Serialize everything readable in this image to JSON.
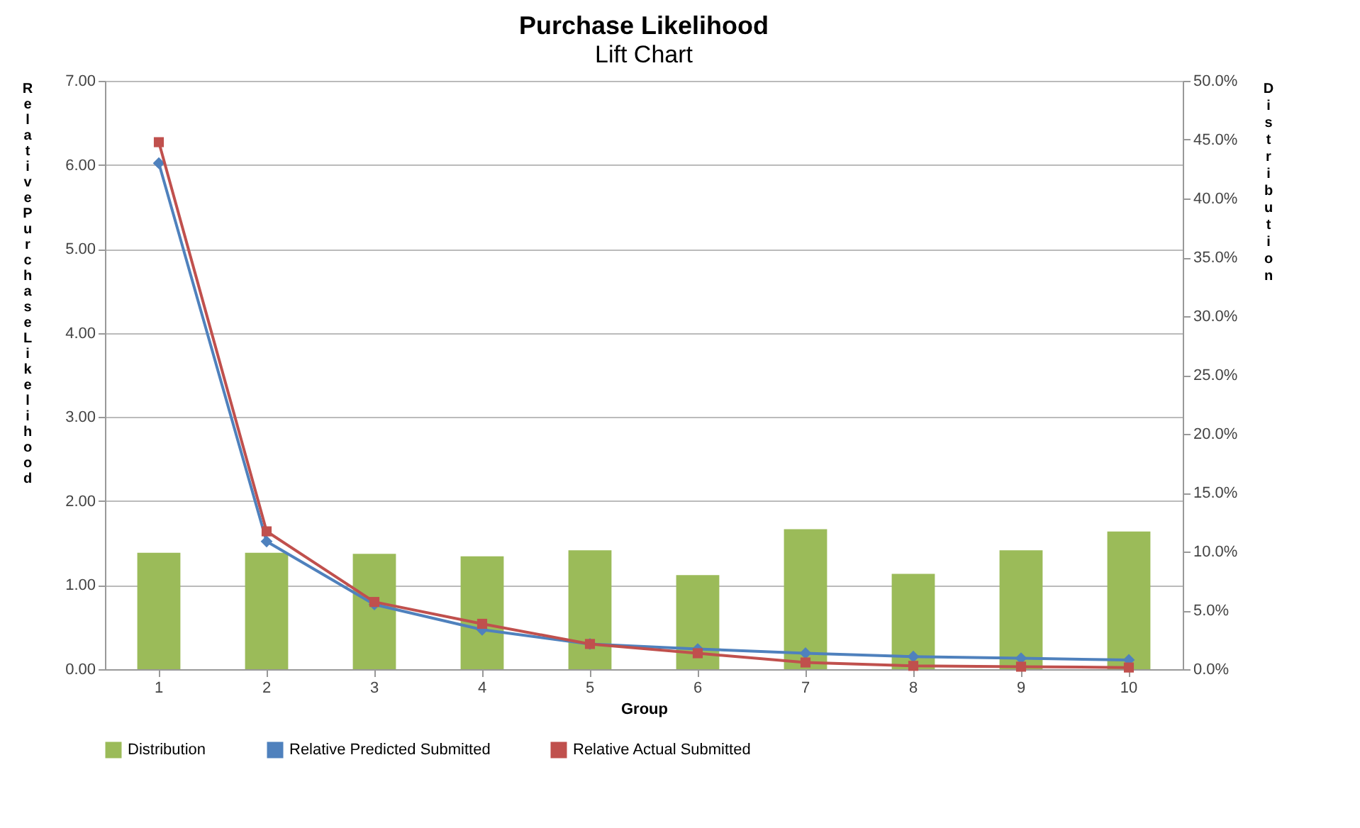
{
  "chart_data": {
    "type": "bar",
    "title": "Purchase Likelihood",
    "subtitle": "Lift Chart",
    "xlabel": "Group",
    "ylabel": "Relative Purchase Likelihood",
    "y2label": "Distribution",
    "categories": [
      "1",
      "2",
      "3",
      "4",
      "5",
      "6",
      "7",
      "8",
      "9",
      "10"
    ],
    "series": [
      {
        "name": "Distribution",
        "axis": "y2",
        "color": "#9bbb59",
        "values": [
          9.9,
          9.9,
          9.8,
          9.6,
          10.1,
          8.0,
          11.9,
          8.1,
          10.1,
          11.7
        ]
      },
      {
        "name": "Relative Predicted Submitted",
        "type": "line",
        "marker": "diamond",
        "color": "#4f81bd",
        "values": [
          6.02,
          1.52,
          0.77,
          0.47,
          0.3,
          0.24,
          0.19,
          0.15,
          0.13,
          0.11
        ]
      },
      {
        "name": "Relative Actual Submitted",
        "type": "line",
        "marker": "square",
        "color": "#c0504d",
        "values": [
          6.27,
          1.64,
          0.8,
          0.54,
          0.3,
          0.19,
          0.08,
          0.04,
          0.03,
          0.02
        ]
      }
    ],
    "ylim": [
      0,
      7
    ],
    "yticks": [
      {
        "value": 0,
        "label": "0.00"
      },
      {
        "value": 1,
        "label": "1.00"
      },
      {
        "value": 2,
        "label": "2.00"
      },
      {
        "value": 3,
        "label": "3.00"
      },
      {
        "value": 4,
        "label": "4.00"
      },
      {
        "value": 5,
        "label": "5.00"
      },
      {
        "value": 6,
        "label": "6.00"
      },
      {
        "value": 7,
        "label": "7.00"
      }
    ],
    "y2lim": [
      0,
      50
    ],
    "y2ticks": [
      {
        "value": 0,
        "label": "0.0%"
      },
      {
        "value": 5,
        "label": "5.0%"
      },
      {
        "value": 10,
        "label": "10.0%"
      },
      {
        "value": 15,
        "label": "15.0%"
      },
      {
        "value": 20,
        "label": "20.0%"
      },
      {
        "value": 25,
        "label": "25.0%"
      },
      {
        "value": 30,
        "label": "30.0%"
      },
      {
        "value": 35,
        "label": "35.0%"
      },
      {
        "value": 40,
        "label": "40.0%"
      },
      {
        "value": 45,
        "label": "45.0%"
      },
      {
        "value": 50,
        "label": "50.0%"
      }
    ],
    "grid": "y",
    "legend": "bottom",
    "line_style": "solid"
  }
}
